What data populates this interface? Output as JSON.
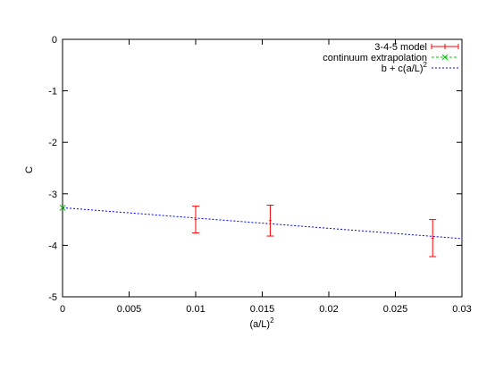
{
  "chart_data": {
    "type": "scatter",
    "title": "",
    "xlabel_base": "(a/L)",
    "xlabel_sup": "2",
    "ylabel": "C",
    "xlim": [
      0,
      0.03
    ],
    "ylim": [
      -5,
      0
    ],
    "x_ticks": [
      0,
      0.005,
      0.01,
      0.015,
      0.02,
      0.025,
      0.03
    ],
    "x_tick_labels": [
      "0",
      "0.005",
      "0.01",
      "0.015",
      "0.02",
      "0.025",
      "0.03"
    ],
    "y_ticks": [
      0,
      -1,
      -2,
      -3,
      -4,
      -5
    ],
    "y_tick_labels": [
      "0",
      "-1",
      "-2",
      "-3",
      "-4",
      "-5"
    ],
    "grid": false,
    "legend_position": "top-right",
    "series": [
      {
        "name": "3-4-5 model",
        "style": "points-errorbars",
        "color": "#ff0000",
        "points": [
          {
            "x": 0.01,
            "y": -3.5,
            "err": 0.26
          },
          {
            "x": 0.0156,
            "y": -3.52,
            "err": 0.3
          },
          {
            "x": 0.0278,
            "y": -3.86,
            "err": 0.36
          }
        ]
      },
      {
        "name": "continuum extrapolation",
        "style": "points-cross",
        "color": "#00cc00",
        "points": [
          {
            "x": 0.0,
            "y": -3.27
          }
        ]
      },
      {
        "name_base": "b + c(a/L)",
        "name_sup": "2",
        "style": "dashed-line",
        "color": "#0000ff",
        "intercept": -3.27,
        "slope": -20
      }
    ]
  }
}
